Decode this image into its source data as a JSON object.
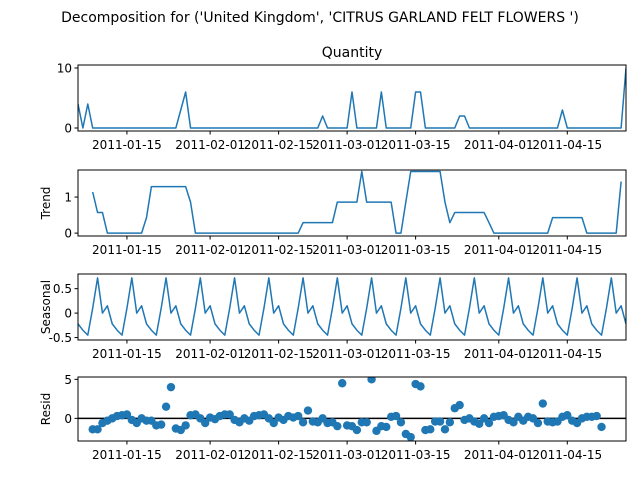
{
  "figure_title": "Decomposition for ('United Kingdom', 'CITRUS GARLAND FELT FLOWERS ')",
  "colors": {
    "line": "#1f77b4",
    "marker": "#1f77b4",
    "axis": "#000000",
    "zero_line": "#000000"
  },
  "x_ticks": [
    "2011-01-15",
    "2011-02-01",
    "2011-02-15",
    "2011-03-01",
    "2011-03-15",
    "2011-04-01",
    "2011-04-15"
  ],
  "chart_data": [
    {
      "type": "line",
      "title": "Quantity",
      "ylabel": "",
      "xlabel": "",
      "x_start": "2011-01-05",
      "x_end": "2011-04-27",
      "xlim": [
        "2011-01-05",
        "2011-04-27"
      ],
      "ylim": [
        -0.5,
        10.5
      ],
      "yticks": [
        0,
        10
      ],
      "grid": false,
      "points": [
        [
          "2011-01-05",
          4
        ],
        [
          "2011-01-06",
          0
        ],
        [
          "2011-01-07",
          4
        ],
        [
          "2011-01-08",
          0
        ],
        [
          "2011-01-20",
          0
        ],
        [
          "2011-01-25",
          0
        ],
        [
          "2011-01-27",
          6
        ],
        [
          "2011-01-28",
          0
        ],
        [
          "2011-02-23",
          0
        ],
        [
          "2011-02-24",
          2
        ],
        [
          "2011-02-25",
          0
        ],
        [
          "2011-03-01",
          0
        ],
        [
          "2011-03-02",
          6
        ],
        [
          "2011-03-03",
          0
        ],
        [
          "2011-03-07",
          0
        ],
        [
          "2011-03-08",
          6
        ],
        [
          "2011-03-09",
          0
        ],
        [
          "2011-03-14",
          0
        ],
        [
          "2011-03-15",
          6
        ],
        [
          "2011-03-16",
          6
        ],
        [
          "2011-03-17",
          0
        ],
        [
          "2011-03-23",
          0
        ],
        [
          "2011-03-24",
          2
        ],
        [
          "2011-03-25",
          2
        ],
        [
          "2011-03-26",
          0
        ],
        [
          "2011-04-13",
          0
        ],
        [
          "2011-04-14",
          3
        ],
        [
          "2011-04-15",
          0
        ],
        [
          "2011-04-26",
          0
        ],
        [
          "2011-04-27",
          10
        ]
      ]
    },
    {
      "type": "line",
      "title": "",
      "ylabel": "Trend",
      "xlabel": "",
      "xlim": [
        "2011-01-05",
        "2011-04-27"
      ],
      "ylim": [
        -0.08,
        1.75
      ],
      "yticks": [
        0,
        1
      ],
      "grid": false,
      "points": [
        [
          "2011-01-08",
          1.14
        ],
        [
          "2011-01-09",
          0.57
        ],
        [
          "2011-01-10",
          0.57
        ],
        [
          "2011-01-11",
          0
        ],
        [
          "2011-01-17",
          0
        ],
        [
          "2011-01-18",
          0
        ],
        [
          "2011-01-19",
          0.43
        ],
        [
          "2011-01-20",
          1.29
        ],
        [
          "2011-01-26",
          1.29
        ],
        [
          "2011-01-27",
          1.29
        ],
        [
          "2011-01-28",
          0.86
        ],
        [
          "2011-01-29",
          0
        ],
        [
          "2011-02-18",
          0
        ],
        [
          "2011-02-19",
          0
        ],
        [
          "2011-02-20",
          0.29
        ],
        [
          "2011-02-26",
          0.29
        ],
        [
          "2011-02-27",
          0.86
        ],
        [
          "2011-03-03",
          0.86
        ],
        [
          "2011-03-04",
          1.71
        ],
        [
          "2011-03-05",
          0.86
        ],
        [
          "2011-03-10",
          0.86
        ],
        [
          "2011-03-11",
          0
        ],
        [
          "2011-03-12",
          0
        ],
        [
          "2011-03-13",
          0.86
        ],
        [
          "2011-03-14",
          1.71
        ],
        [
          "2011-03-20",
          1.71
        ],
        [
          "2011-03-21",
          0.86
        ],
        [
          "2011-03-22",
          0.29
        ],
        [
          "2011-03-23",
          0.57
        ],
        [
          "2011-03-29",
          0.57
        ],
        [
          "2011-03-30",
          0.29
        ],
        [
          "2011-03-31",
          0
        ],
        [
          "2011-04-10",
          0
        ],
        [
          "2011-04-11",
          0
        ],
        [
          "2011-04-12",
          0.43
        ],
        [
          "2011-04-18",
          0.43
        ],
        [
          "2011-04-19",
          0
        ],
        [
          "2011-04-25",
          0
        ],
        [
          "2011-04-26",
          1.43
        ]
      ]
    },
    {
      "type": "line",
      "title": "",
      "ylabel": "Seasonal",
      "xlabel": "",
      "xlim": [
        "2011-01-05",
        "2011-04-27"
      ],
      "ylim": [
        -0.55,
        0.8
      ],
      "yticks": [
        -0.5,
        0.0,
        0.5
      ],
      "grid": false,
      "pattern_start": "2011-01-05",
      "pattern": [
        -0.22,
        -0.35,
        -0.45,
        0.1,
        0.72,
        0.0,
        0.15
      ],
      "points_end": "2011-04-27"
    },
    {
      "type": "scatter",
      "title": "",
      "ylabel": "Resid",
      "xlabel": "",
      "xlim": [
        "2011-01-05",
        "2011-04-27"
      ],
      "ylim": [
        -2.9,
        5.3
      ],
      "yticks": [
        0,
        5
      ],
      "grid": false,
      "zero_line": true,
      "points": [
        [
          "2011-01-08",
          -1.4
        ],
        [
          "2011-01-09",
          -1.4
        ],
        [
          "2011-01-10",
          -0.6
        ],
        [
          "2011-01-11",
          -0.3
        ],
        [
          "2011-01-12",
          0.0
        ],
        [
          "2011-01-13",
          0.3
        ],
        [
          "2011-01-14",
          0.4
        ],
        [
          "2011-01-15",
          0.5
        ],
        [
          "2011-01-16",
          -0.2
        ],
        [
          "2011-01-17",
          -0.6
        ],
        [
          "2011-01-18",
          0.0
        ],
        [
          "2011-01-19",
          -0.3
        ],
        [
          "2011-01-20",
          -0.3
        ],
        [
          "2011-01-21",
          -0.9
        ],
        [
          "2011-01-22",
          -0.8
        ],
        [
          "2011-01-23",
          1.5
        ],
        [
          "2011-01-24",
          4.0
        ],
        [
          "2011-01-25",
          -1.3
        ],
        [
          "2011-01-26",
          -1.5
        ],
        [
          "2011-01-27",
          -0.9
        ],
        [
          "2011-01-28",
          0.4
        ],
        [
          "2011-01-29",
          0.5
        ],
        [
          "2011-01-30",
          0.0
        ],
        [
          "2011-01-31",
          -0.6
        ],
        [
          "2011-02-01",
          0.1
        ],
        [
          "2011-02-02",
          -0.1
        ],
        [
          "2011-02-03",
          0.3
        ],
        [
          "2011-02-04",
          0.5
        ],
        [
          "2011-02-05",
          0.5
        ],
        [
          "2011-02-06",
          -0.2
        ],
        [
          "2011-02-07",
          -0.5
        ],
        [
          "2011-02-08",
          0.0
        ],
        [
          "2011-02-09",
          -0.3
        ],
        [
          "2011-02-10",
          0.3
        ],
        [
          "2011-02-11",
          0.4
        ],
        [
          "2011-02-12",
          0.5
        ],
        [
          "2011-02-13",
          0.0
        ],
        [
          "2011-02-14",
          -0.6
        ],
        [
          "2011-02-15",
          0.1
        ],
        [
          "2011-02-16",
          -0.2
        ],
        [
          "2011-02-17",
          0.3
        ],
        [
          "2011-02-18",
          0.1
        ],
        [
          "2011-02-19",
          0.3
        ],
        [
          "2011-02-20",
          -0.5
        ],
        [
          "2011-02-21",
          1.0
        ],
        [
          "2011-02-22",
          -0.4
        ],
        [
          "2011-02-23",
          -0.5
        ],
        [
          "2011-02-24",
          0.0
        ],
        [
          "2011-02-25",
          -0.6
        ],
        [
          "2011-02-26",
          -0.5
        ],
        [
          "2011-02-27",
          -1.0
        ],
        [
          "2011-02-28",
          4.5
        ],
        [
          "2011-03-01",
          -0.9
        ],
        [
          "2011-03-02",
          -1.0
        ],
        [
          "2011-03-03",
          -1.5
        ],
        [
          "2011-03-04",
          -0.5
        ],
        [
          "2011-03-05",
          -0.5
        ],
        [
          "2011-03-06",
          5.0
        ],
        [
          "2011-03-07",
          -1.6
        ],
        [
          "2011-03-08",
          -1.0
        ],
        [
          "2011-03-09",
          -1.1
        ],
        [
          "2011-03-10",
          0.2
        ],
        [
          "2011-03-11",
          0.3
        ],
        [
          "2011-03-12",
          -0.5
        ],
        [
          "2011-03-13",
          -2.0
        ],
        [
          "2011-03-14",
          -2.4
        ],
        [
          "2011-03-15",
          4.4
        ],
        [
          "2011-03-16",
          4.1
        ],
        [
          "2011-03-17",
          -1.5
        ],
        [
          "2011-03-18",
          -1.4
        ],
        [
          "2011-03-19",
          -0.4
        ],
        [
          "2011-03-20",
          -0.4
        ],
        [
          "2011-03-21",
          -1.4
        ],
        [
          "2011-03-22",
          -0.5
        ],
        [
          "2011-03-23",
          1.3
        ],
        [
          "2011-03-24",
          1.7
        ],
        [
          "2011-03-25",
          -0.2
        ],
        [
          "2011-03-26",
          0.0
        ],
        [
          "2011-03-27",
          -0.4
        ],
        [
          "2011-03-28",
          -0.7
        ],
        [
          "2011-03-29",
          0.0
        ],
        [
          "2011-03-30",
          -0.6
        ],
        [
          "2011-03-31",
          0.2
        ],
        [
          "2011-04-01",
          0.3
        ],
        [
          "2011-04-02",
          0.4
        ],
        [
          "2011-04-03",
          -0.2
        ],
        [
          "2011-04-04",
          -0.5
        ],
        [
          "2011-04-05",
          0.2
        ],
        [
          "2011-04-06",
          -0.3
        ],
        [
          "2011-04-07",
          0.2
        ],
        [
          "2011-04-08",
          0.0
        ],
        [
          "2011-04-09",
          -0.6
        ],
        [
          "2011-04-10",
          1.9
        ],
        [
          "2011-04-11",
          -0.4
        ],
        [
          "2011-04-12",
          -0.5
        ],
        [
          "2011-04-13",
          -0.4
        ],
        [
          "2011-04-14",
          0.2
        ],
        [
          "2011-04-15",
          0.4
        ],
        [
          "2011-04-16",
          -0.3
        ],
        [
          "2011-04-17",
          -0.6
        ],
        [
          "2011-04-18",
          0.0
        ],
        [
          "2011-04-19",
          0.2
        ],
        [
          "2011-04-20",
          0.2
        ],
        [
          "2011-04-21",
          0.3
        ],
        [
          "2011-04-22",
          -1.1
        ]
      ]
    }
  ]
}
